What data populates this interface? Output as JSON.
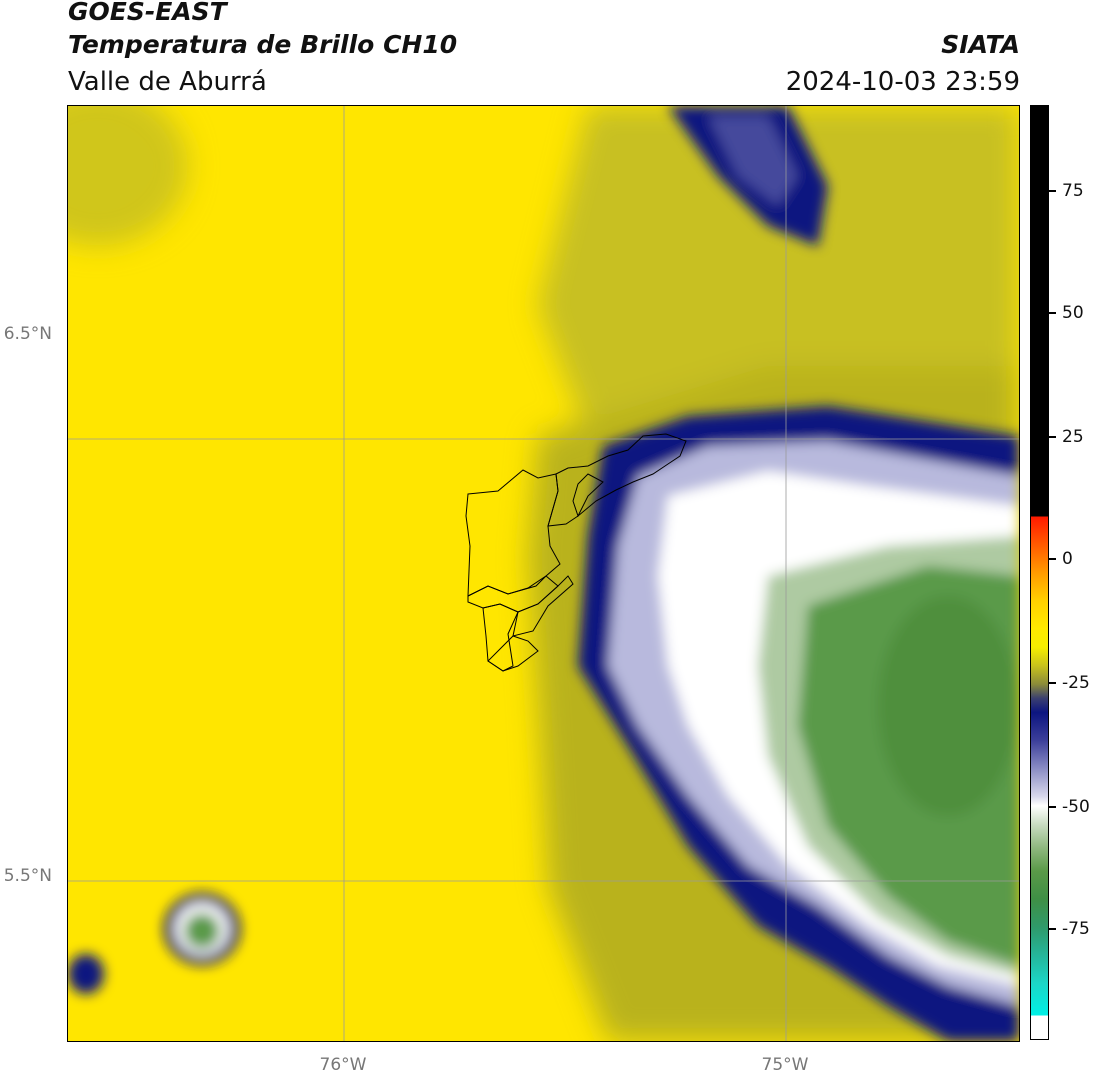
{
  "header": {
    "satellite": "GOES-EAST",
    "product": "Temperatura de Brillo CH10",
    "region": "Valle de Aburrá",
    "organization": "SIATA",
    "timestamp": "2024-10-03 23:59"
  },
  "map": {
    "lat_labels": [
      "6.5°N",
      "5.5°N"
    ],
    "lon_labels": [
      "76°W",
      "75°W"
    ],
    "colors": {
      "warm_yellow": "#ffe600",
      "olive": "#c8c020",
      "navy": "#0c1580",
      "white": "#ffffff",
      "green": "#5a9a48",
      "frame": "#000000"
    }
  },
  "colorbar": {
    "tick_labels": [
      "75",
      "50",
      "25",
      "0",
      "-25",
      "-50",
      "-75"
    ]
  }
}
